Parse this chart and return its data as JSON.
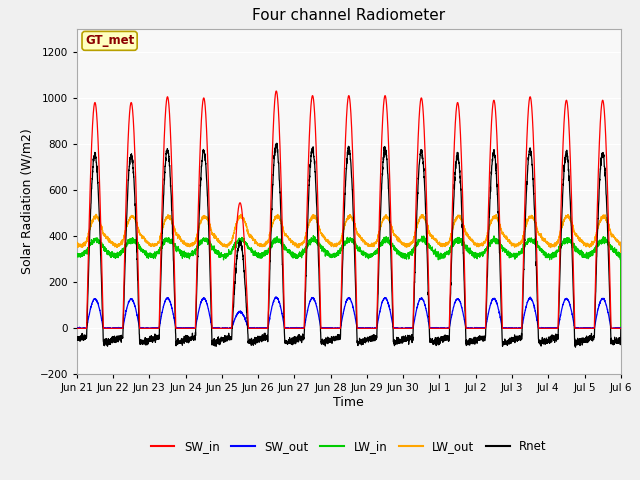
{
  "title": "Four channel Radiometer",
  "xlabel": "Time",
  "ylabel": "Solar Radiation (W/m2)",
  "ylim": [
    -200,
    1300
  ],
  "yticks": [
    -200,
    0,
    200,
    400,
    600,
    800,
    1000,
    1200
  ],
  "fig_bg_color": "#f0f0f0",
  "plot_bg_color": "#f8f8f8",
  "legend_labels": [
    "SW_in",
    "SW_out",
    "LW_in",
    "LW_out",
    "Rnet"
  ],
  "legend_colors": [
    "#ff0000",
    "#0000ff",
    "#00cc00",
    "#ffa500",
    "#000000"
  ],
  "annotation_text": "GT_met",
  "annotation_bg": "#ffffc0",
  "annotation_border": "#b8a000",
  "num_days": 15,
  "xtick_labels": [
    "Jun 21",
    "Jun 22",
    "Jun 23",
    "Jun 24",
    "Jun 25",
    "Jun 26",
    "Jun 27",
    "Jun 28",
    "Jun 29",
    "Jun 30",
    "Jul 1",
    "Jul 2",
    "Jul 3",
    "Jul 4",
    "Jul 5",
    "Jul 6"
  ]
}
